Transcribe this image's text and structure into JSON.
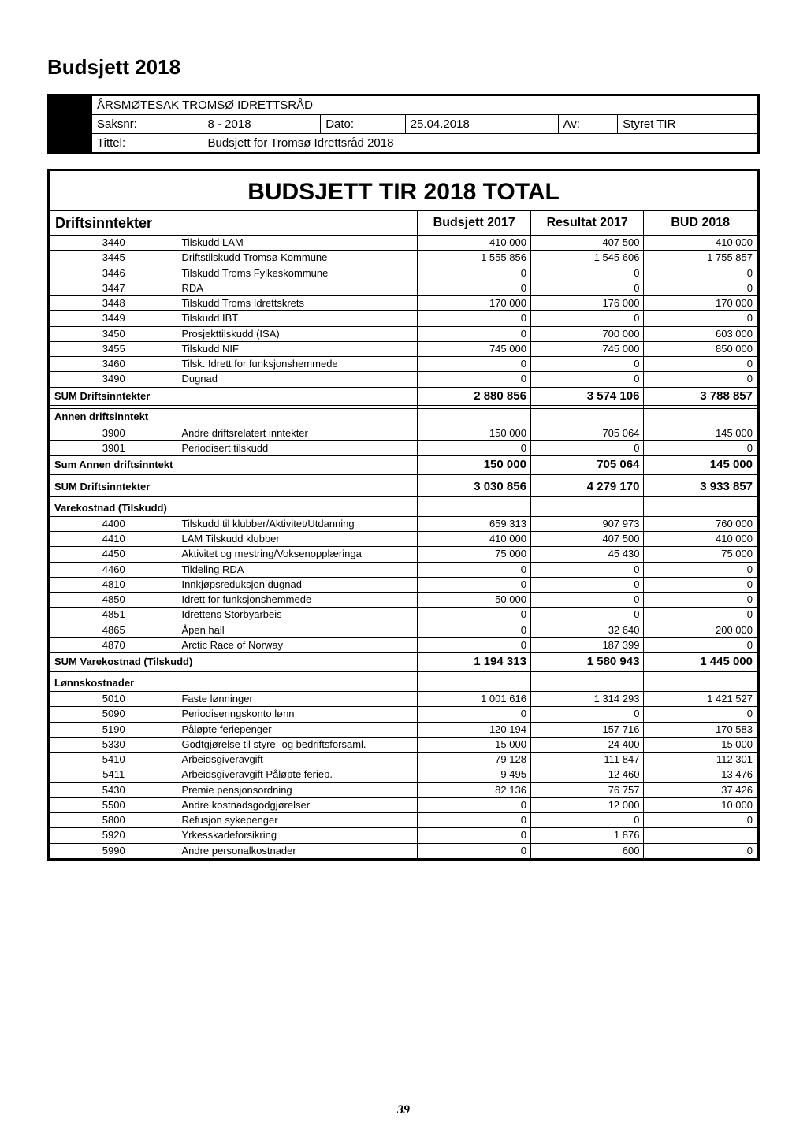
{
  "page_title": "Budsjett 2018",
  "meta": {
    "heading": "ÅRSMØTESAK TROMSØ IDRETTSRÅD",
    "saksnr_label": "Saksnr:",
    "saksnr": "8 - 2018",
    "dato_label": "Dato:",
    "dato": "25.04.2018",
    "av_label": "Av:",
    "av": "Styret TIR",
    "tittel_label": "Tittel:",
    "tittel": "Budsjett for Tromsø Idrettsråd 2018"
  },
  "big_title": "BUDSJETT TIR 2018 TOTAL",
  "col_headers": {
    "c1": "Driftsinntekter",
    "c3": "Budsjett 2017",
    "c4": "Resultat 2017",
    "c5": "BUD 2018"
  },
  "sections": {
    "driftsinntekter_rows": [
      [
        "3440",
        "Tilskudd LAM",
        "410 000",
        "407 500",
        "410 000"
      ],
      [
        "3445",
        "Driftstilskudd Tromsø Kommune",
        "1 555 856",
        "1 545 606",
        "1 755 857"
      ],
      [
        "3446",
        "Tilskudd Troms Fylkeskommune",
        "0",
        "0",
        "0"
      ],
      [
        "3447",
        "RDA",
        "0",
        "0",
        "0"
      ],
      [
        "3448",
        "Tilskudd Troms Idrettskrets",
        "170 000",
        "176 000",
        "170 000"
      ],
      [
        "3449",
        "Tilskudd IBT",
        "0",
        "0",
        "0"
      ],
      [
        "3450",
        "Prosjekttilskudd (ISA)",
        "0",
        "700 000",
        "603 000"
      ],
      [
        "3455",
        "Tilskudd NIF",
        "745 000",
        "745 000",
        "850 000"
      ],
      [
        "3460",
        "Tilsk. Idrett for funksjonshemmede",
        "0",
        "0",
        "0"
      ],
      [
        "3490",
        "Dugnad",
        "0",
        "0",
        "0"
      ]
    ],
    "sum_drift_label": "SUM Driftsinntekter",
    "sum_drift_vals": [
      "2 880 856",
      "3 574 106",
      "3 788 857"
    ],
    "annen_label": "Annen driftsinntekt",
    "annen_rows": [
      [
        "3900",
        "Andre driftsrelatert inntekter",
        "150 000",
        "705 064",
        "145 000"
      ],
      [
        "3901",
        "Periodisert tilskudd",
        "0",
        "0",
        "0"
      ]
    ],
    "sum_annen_label": "Sum Annen driftsinntekt",
    "sum_annen_vals": [
      "150 000",
      "705 064",
      "145 000"
    ],
    "sum_drift2_label": "SUM Driftsinntekter",
    "sum_drift2_vals": [
      "3 030 856",
      "4 279 170",
      "3 933 857"
    ],
    "varekost_label": "Varekostnad (Tilskudd)",
    "varekost_rows": [
      [
        "4400",
        "Tilskudd til klubber/Aktivitet/Utdanning",
        "659 313",
        "907 973",
        "760 000"
      ],
      [
        "4410",
        "LAM Tilskudd klubber",
        "410 000",
        "407 500",
        "410 000"
      ],
      [
        "4450",
        "Aktivitet og mestring/Voksenopplæringa",
        "75 000",
        "45 430",
        "75 000"
      ],
      [
        "4460",
        "Tildeling RDA",
        "0",
        "0",
        "0"
      ],
      [
        "4810",
        "Innkjøpsreduksjon dugnad",
        "0",
        "0",
        "0"
      ],
      [
        "4850",
        "Idrett for funksjonshemmede",
        "50 000",
        "0",
        "0"
      ],
      [
        "4851",
        "Idrettens Storbyarbeis",
        "0",
        "0",
        "0"
      ],
      [
        "4865",
        "Åpen hall",
        "0",
        "32 640",
        "200 000"
      ],
      [
        "4870",
        "Arctic Race of Norway",
        "0",
        "187 399",
        "0"
      ]
    ],
    "sum_varekost_label": "SUM Varekostnad (Tilskudd)",
    "sum_varekost_vals": [
      "1 194 313",
      "1 580 943",
      "1 445 000"
    ],
    "lonn_label": "Lønnskostnader",
    "lonn_rows": [
      [
        "5010",
        "Faste lønninger",
        "1 001 616",
        "1 314 293",
        "1 421 527"
      ],
      [
        "5090",
        "Periodiseringskonto lønn",
        "0",
        "0",
        "0"
      ],
      [
        "5190",
        "Påløpte feriepenger",
        "120 194",
        "157 716",
        "170 583"
      ],
      [
        "5330",
        "Godtgjørelse til styre- og bedriftsforsaml.",
        "15 000",
        "24 400",
        "15 000"
      ],
      [
        "5410",
        "Arbeidsgiveravgift",
        "79 128",
        "111 847",
        "112 301"
      ],
      [
        "5411",
        "Arbeidsgiveravgift Påløpte feriep.",
        "9 495",
        "12 460",
        "13 476"
      ],
      [
        "5430",
        "Premie pensjonsordning",
        "82 136",
        "76 757",
        "37 426"
      ],
      [
        "5500",
        "Andre kostnadsgodgjørelser",
        "0",
        "12 000",
        "10 000"
      ],
      [
        "5800",
        "Refusjon sykepenger",
        "0",
        "0",
        "0"
      ],
      [
        "5920",
        "Yrkesskadeforsikring",
        "0",
        "1 876",
        ""
      ],
      [
        "5990",
        "Andre personalkostnader",
        "0",
        "600",
        "0"
      ]
    ]
  },
  "page_number": "39"
}
